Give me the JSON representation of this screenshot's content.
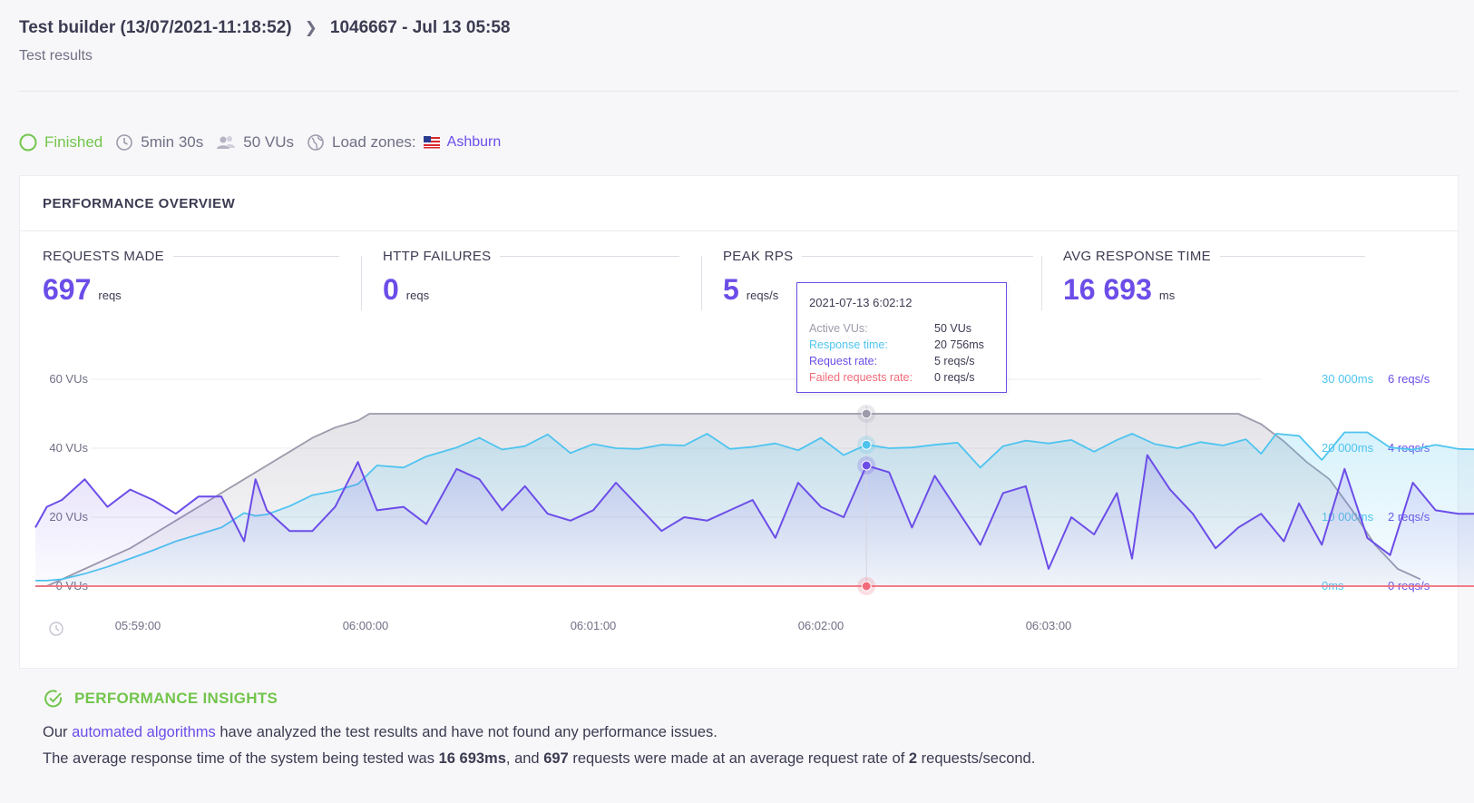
{
  "breadcrumb": {
    "parent": "Test builder (13/07/2021-11:18:52)",
    "current": "1046667 - Jul 13 05:58"
  },
  "subtitle": "Test results",
  "status": {
    "state": "Finished",
    "duration": "5min 30s",
    "vus": "50 VUs",
    "load_zones_label": "Load zones:",
    "load_zone": "Ashburn"
  },
  "overview": {
    "title": "PERFORMANCE OVERVIEW",
    "metrics": [
      {
        "label": "REQUESTS MADE",
        "value": "697",
        "unit": "reqs"
      },
      {
        "label": "HTTP FAILURES",
        "value": "0",
        "unit": "reqs"
      },
      {
        "label": "PEAK RPS",
        "value": "5",
        "unit": "reqs/s"
      },
      {
        "label": "AVG RESPONSE TIME",
        "value": "16 693",
        "unit": "ms"
      }
    ]
  },
  "tooltip": {
    "title": "2021-07-13 6:02:12",
    "rows": [
      {
        "key": "Active VUs:",
        "value": "50 VUs"
      },
      {
        "key": "Response time:",
        "value": "20 756ms"
      },
      {
        "key": "Request rate:",
        "value": "5 reqs/s"
      },
      {
        "key": "Failed requests rate:",
        "value": "0 reqs/s"
      }
    ]
  },
  "colors": {
    "vus": "#9d9aab",
    "response": "#4ec4ef",
    "requests": "#6c4de8",
    "failed": "#f16b7a",
    "finished": "#73c54c"
  },
  "chart_data": {
    "type": "line",
    "x_ticks": [
      "05:59:00",
      "06:00:00",
      "06:01:00",
      "06:02:00",
      "06:03:00"
    ],
    "x_range_seconds": [
      -30,
      305
    ],
    "left_axis": {
      "ticks": [
        "0 VUs",
        "20 VUs",
        "40 VUs",
        "60 VUs"
      ],
      "range": [
        0,
        60
      ]
    },
    "right_axis_response": {
      "ticks": [
        "0ms",
        "10 000ms",
        "20 000ms",
        "30 000ms"
      ],
      "range": [
        0,
        30000
      ]
    },
    "right_axis_requests": {
      "ticks": [
        "0 reqs/s",
        "2 reqs/s",
        "4 reqs/s",
        "6 reqs/s"
      ],
      "range": [
        0,
        6
      ]
    },
    "series": [
      {
        "name": "Active VUs",
        "axis": "vus",
        "points": [
          [
            -27,
            0
          ],
          [
            -24,
            0
          ],
          [
            -20,
            2
          ],
          [
            -14,
            5
          ],
          [
            -8,
            8
          ],
          [
            -2,
            11
          ],
          [
            4,
            15
          ],
          [
            10,
            19
          ],
          [
            16,
            23
          ],
          [
            22,
            27
          ],
          [
            28,
            31
          ],
          [
            34,
            35
          ],
          [
            40,
            39
          ],
          [
            46,
            43
          ],
          [
            52,
            46
          ],
          [
            58,
            48
          ],
          [
            61,
            50
          ],
          [
            290,
            50
          ],
          [
            296,
            47
          ],
          [
            302,
            42
          ],
          [
            308,
            36
          ],
          [
            314,
            31
          ],
          [
            320,
            22
          ],
          [
            326,
            12
          ],
          [
            332,
            5
          ],
          [
            338,
            2
          ]
        ]
      },
      {
        "name": "Response time",
        "axis": "response",
        "points": [
          [
            -27,
            800
          ],
          [
            -24,
            800
          ],
          [
            -20,
            1000
          ],
          [
            -14,
            1800
          ],
          [
            -8,
            2800
          ],
          [
            -2,
            4000
          ],
          [
            4,
            5200
          ],
          [
            10,
            6500
          ],
          [
            16,
            7500
          ],
          [
            22,
            8500
          ],
          [
            28,
            10600
          ],
          [
            31,
            10200
          ],
          [
            34,
            10400
          ],
          [
            40,
            11600
          ],
          [
            46,
            13200
          ],
          [
            52,
            13800
          ],
          [
            58,
            14800
          ],
          [
            63,
            17500
          ],
          [
            70,
            17200
          ],
          [
            76,
            18800
          ],
          [
            84,
            20100
          ],
          [
            90,
            21500
          ],
          [
            96,
            19800
          ],
          [
            102,
            20300
          ],
          [
            108,
            22000
          ],
          [
            114,
            19300
          ],
          [
            120,
            20600
          ],
          [
            126,
            20000
          ],
          [
            132,
            19900
          ],
          [
            138,
            20500
          ],
          [
            144,
            20400
          ],
          [
            150,
            22100
          ],
          [
            156,
            19900
          ],
          [
            162,
            20200
          ],
          [
            168,
            20700
          ],
          [
            174,
            19700
          ],
          [
            180,
            21500
          ],
          [
            186,
            19000
          ],
          [
            192,
            20500
          ],
          [
            198,
            20000
          ],
          [
            204,
            20100
          ],
          [
            210,
            20500
          ],
          [
            216,
            20800
          ],
          [
            222,
            17200
          ],
          [
            228,
            20300
          ],
          [
            234,
            21100
          ],
          [
            240,
            20700
          ],
          [
            246,
            21200
          ],
          [
            252,
            19500
          ],
          [
            258,
            21200
          ],
          [
            262,
            22100
          ],
          [
            268,
            20600
          ],
          [
            274,
            20000
          ],
          [
            280,
            20900
          ],
          [
            286,
            20400
          ],
          [
            292,
            21300
          ],
          [
            296,
            19200
          ],
          [
            300,
            22100
          ],
          [
            306,
            21800
          ],
          [
            312,
            18300
          ],
          [
            318,
            22300
          ],
          [
            324,
            22300
          ],
          [
            330,
            20100
          ],
          [
            336,
            19800
          ],
          [
            342,
            20500
          ],
          [
            348,
            19900
          ],
          [
            354,
            19800
          ],
          [
            360,
            18700
          ],
          [
            366,
            18300
          ],
          [
            372,
            17900
          ],
          [
            378,
            19100
          ],
          [
            384,
            14900
          ],
          [
            390,
            14300
          ],
          [
            396,
            12900
          ],
          [
            402,
            9200
          ],
          [
            408,
            9200
          ],
          [
            414,
            4700
          ],
          [
            420,
            3100
          ],
          [
            426,
            1500
          ]
        ]
      },
      {
        "name": "Request rate",
        "axis": "requests",
        "points": [
          [
            -27,
            1.7
          ],
          [
            -24,
            2.3
          ],
          [
            -20,
            2.5
          ],
          [
            -14,
            3.1
          ],
          [
            -8,
            2.3
          ],
          [
            -2,
            2.8
          ],
          [
            4,
            2.5
          ],
          [
            10,
            2.1
          ],
          [
            16,
            2.6
          ],
          [
            22,
            2.6
          ],
          [
            28,
            1.3
          ],
          [
            31,
            3.1
          ],
          [
            34,
            2.2
          ],
          [
            40,
            1.6
          ],
          [
            46,
            1.6
          ],
          [
            52,
            2.3
          ],
          [
            58,
            3.6
          ],
          [
            63,
            2.2
          ],
          [
            70,
            2.3
          ],
          [
            76,
            1.8
          ],
          [
            84,
            3.4
          ],
          [
            90,
            3.1
          ],
          [
            96,
            2.2
          ],
          [
            102,
            2.9
          ],
          [
            108,
            2.1
          ],
          [
            114,
            1.9
          ],
          [
            120,
            2.2
          ],
          [
            126,
            3.0
          ],
          [
            132,
            2.3
          ],
          [
            138,
            1.6
          ],
          [
            144,
            2.0
          ],
          [
            150,
            1.9
          ],
          [
            156,
            2.2
          ],
          [
            162,
            2.5
          ],
          [
            168,
            1.4
          ],
          [
            174,
            3.0
          ],
          [
            180,
            2.3
          ],
          [
            186,
            2.0
          ],
          [
            192,
            3.5
          ],
          [
            198,
            3.3
          ],
          [
            204,
            1.7
          ],
          [
            210,
            3.2
          ],
          [
            216,
            2.2
          ],
          [
            222,
            1.2
          ],
          [
            228,
            2.7
          ],
          [
            234,
            2.9
          ],
          [
            240,
            0.5
          ],
          [
            246,
            2.0
          ],
          [
            252,
            1.5
          ],
          [
            258,
            2.7
          ],
          [
            262,
            0.8
          ],
          [
            266,
            3.8
          ],
          [
            272,
            2.8
          ],
          [
            278,
            2.1
          ],
          [
            284,
            1.1
          ],
          [
            290,
            1.7
          ],
          [
            296,
            2.1
          ],
          [
            302,
            1.3
          ],
          [
            306,
            2.4
          ],
          [
            312,
            1.2
          ],
          [
            318,
            3.4
          ],
          [
            324,
            1.4
          ],
          [
            330,
            0.9
          ],
          [
            336,
            3.0
          ],
          [
            342,
            2.2
          ],
          [
            348,
            2.1
          ],
          [
            354,
            2.1
          ],
          [
            360,
            2.0
          ],
          [
            366,
            2.2
          ],
          [
            372,
            3.7
          ],
          [
            378,
            3.5
          ],
          [
            384,
            3.2
          ],
          [
            390,
            2.6
          ],
          [
            396,
            2.1
          ],
          [
            402,
            1.2
          ],
          [
            408,
            5.0
          ],
          [
            414,
            1.4
          ],
          [
            420,
            1.4
          ],
          [
            426,
            0.2
          ]
        ]
      },
      {
        "name": "Failed requests rate",
        "axis": "requests",
        "points": [
          [
            -27,
            0
          ],
          [
            426,
            0
          ]
        ]
      }
    ],
    "cursor_x": 192,
    "legend": "tooltip"
  },
  "insights": {
    "title": "PERFORMANCE INSIGHTS",
    "p1_pre": "Our ",
    "p1_link": "automated algorithms",
    "p1_post": " have analyzed the test results and have not found any performance issues.",
    "p2_a": "The average response time of the system being tested was ",
    "p2_b": "16 693ms",
    "p2_c": ", and ",
    "p2_d": "697",
    "p2_e": " requests were made at an average request rate of ",
    "p2_f": "2",
    "p2_g": " requests/second."
  }
}
